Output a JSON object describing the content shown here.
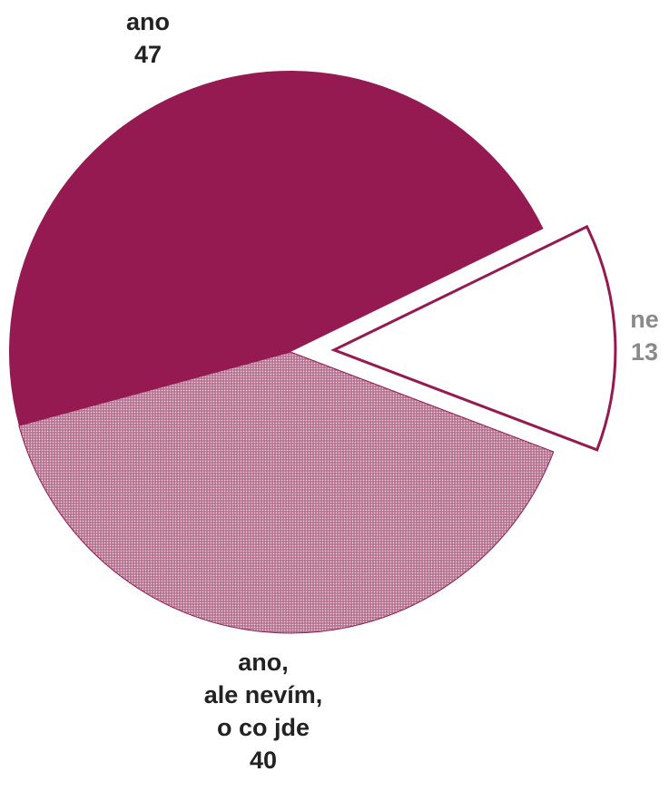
{
  "chart_data": {
    "type": "pie",
    "title": "",
    "slices": [
      {
        "label_lines": [
          "ano"
        ],
        "value": 47,
        "color": "#941a51",
        "fill": "solid"
      },
      {
        "label_lines": [
          "ne"
        ],
        "value": 13,
        "color": "#941a51",
        "fill": "outline",
        "exploded": true
      },
      {
        "label_lines": [
          "ano,",
          "ale nevím,",
          "o co jde"
        ],
        "value": 40,
        "color": "#941a51",
        "fill": "dotted"
      }
    ],
    "legend": "none"
  }
}
